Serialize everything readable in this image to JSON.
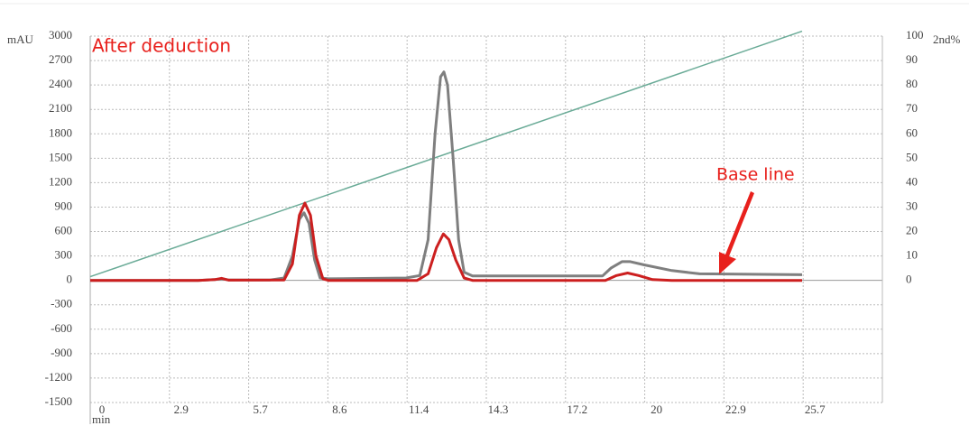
{
  "chart_data": {
    "type": "line",
    "annotations": {
      "title": "After deduction",
      "baseline": "Base line"
    },
    "y_label": "mAU",
    "y2_label": "2nd%",
    "x_label": "min",
    "xlim": [
      0,
      28.6
    ],
    "xticks": [
      0,
      {
        "value": 2.86,
        "label": "2.9"
      },
      {
        "value": 5.72,
        "label": "5.7"
      },
      {
        "value": 8.58,
        "label": "8.6"
      },
      {
        "value": 11.44,
        "label": "11.4"
      },
      {
        "value": 14.3,
        "label": "14.3"
      },
      {
        "value": 17.16,
        "label": "17.2"
      },
      {
        "value": 20.02,
        "label": "20"
      },
      {
        "value": 22.88,
        "label": "22.9"
      },
      {
        "value": 25.74,
        "label": "25.7"
      }
    ],
    "ylim": [
      -1500,
      3000
    ],
    "yticks": [
      -1500,
      -1200,
      -900,
      -600,
      -300,
      0,
      300,
      600,
      900,
      1200,
      1500,
      1800,
      2100,
      2400,
      2700,
      3000
    ],
    "y2lim": [
      -50,
      100
    ],
    "y2ticks": [
      0,
      10,
      20,
      30,
      40,
      50,
      60,
      70,
      80,
      90,
      100
    ],
    "grid": true,
    "series": [
      {
        "color": "#7f7f7f",
        "x": [
          0,
          3.9,
          4.5,
          4.75,
          5.0,
          6.5,
          7.0,
          7.3,
          7.55,
          7.72,
          7.9,
          8.1,
          8.3,
          8.6,
          11.4,
          11.9,
          12.2,
          12.45,
          12.65,
          12.77,
          12.9,
          13.1,
          13.3,
          13.5,
          13.8,
          18.5,
          18.8,
          19.2,
          19.5,
          20,
          21,
          22,
          25.7
        ],
        "values": [
          0,
          0,
          10,
          20,
          5,
          5,
          30,
          300,
          750,
          830,
          700,
          250,
          30,
          20,
          30,
          60,
          500,
          1800,
          2500,
          2560,
          2400,
          1500,
          500,
          100,
          55,
          55,
          150,
          230,
          230,
          190,
          120,
          80,
          70
        ]
      },
      {
        "color": "#cc1f1f",
        "x": [
          0,
          3.9,
          4.5,
          4.75,
          5.0,
          7.0,
          7.3,
          7.55,
          7.75,
          7.95,
          8.15,
          8.4,
          8.6,
          11.8,
          12.2,
          12.5,
          12.75,
          12.95,
          13.2,
          13.5,
          13.8,
          18.6,
          19.0,
          19.4,
          19.8,
          20.3,
          21,
          25.7
        ],
        "values": [
          0,
          0,
          10,
          25,
          3,
          5,
          200,
          800,
          950,
          800,
          300,
          20,
          0,
          0,
          80,
          400,
          570,
          500,
          250,
          30,
          0,
          0,
          60,
          90,
          60,
          10,
          0,
          0
        ]
      },
      {
        "color": "#6aab97",
        "axis": "y2",
        "x": [
          0,
          25.7
        ],
        "values": [
          1.5,
          102
        ]
      }
    ]
  }
}
